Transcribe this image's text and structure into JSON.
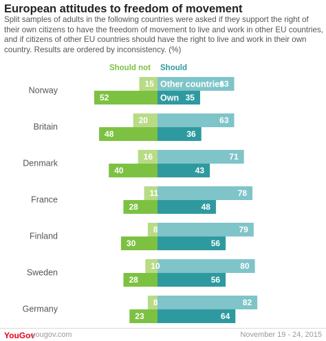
{
  "header": {
    "title": "European attitudes to freedom of movement",
    "subtitle": "Split samples of adults in the following countries were asked if they support the right of their own citizens to have the freedom of movement to live and work in other EU countries, and if citizens of other EU countries should have the right to live and work in their own country. Results are ordered by inconsistency. (%)"
  },
  "chart_data": {
    "type": "bar",
    "orientation": "horizontal-diverging",
    "categories": [
      "Norway",
      "Britain",
      "Denmark",
      "France",
      "Finland",
      "Sweden",
      "Germany"
    ],
    "column_labels": {
      "left": "Should not",
      "right": "Should"
    },
    "series": [
      {
        "name": "Other countries",
        "should_not": [
          15,
          20,
          16,
          11,
          8,
          10,
          8
        ],
        "should": [
          63,
          63,
          71,
          78,
          79,
          80,
          82
        ]
      },
      {
        "name": "Own",
        "should_not": [
          52,
          48,
          40,
          28,
          30,
          28,
          23
        ],
        "should": [
          35,
          36,
          43,
          48,
          56,
          56,
          64
        ]
      }
    ],
    "legend_placement": "inside first row bars",
    "grid": false,
    "colors": {
      "other_should_not": "#b8db86",
      "own_should_not": "#7dc142",
      "other_should": "#7fc4c8",
      "own_should": "#2e9a9f",
      "should_not_label": "#7dc142",
      "should_label": "#2e9a9f"
    }
  },
  "footer": {
    "brand": "YouGov",
    "site": "yougov.com",
    "date": "November 19 - 24, 2015"
  }
}
